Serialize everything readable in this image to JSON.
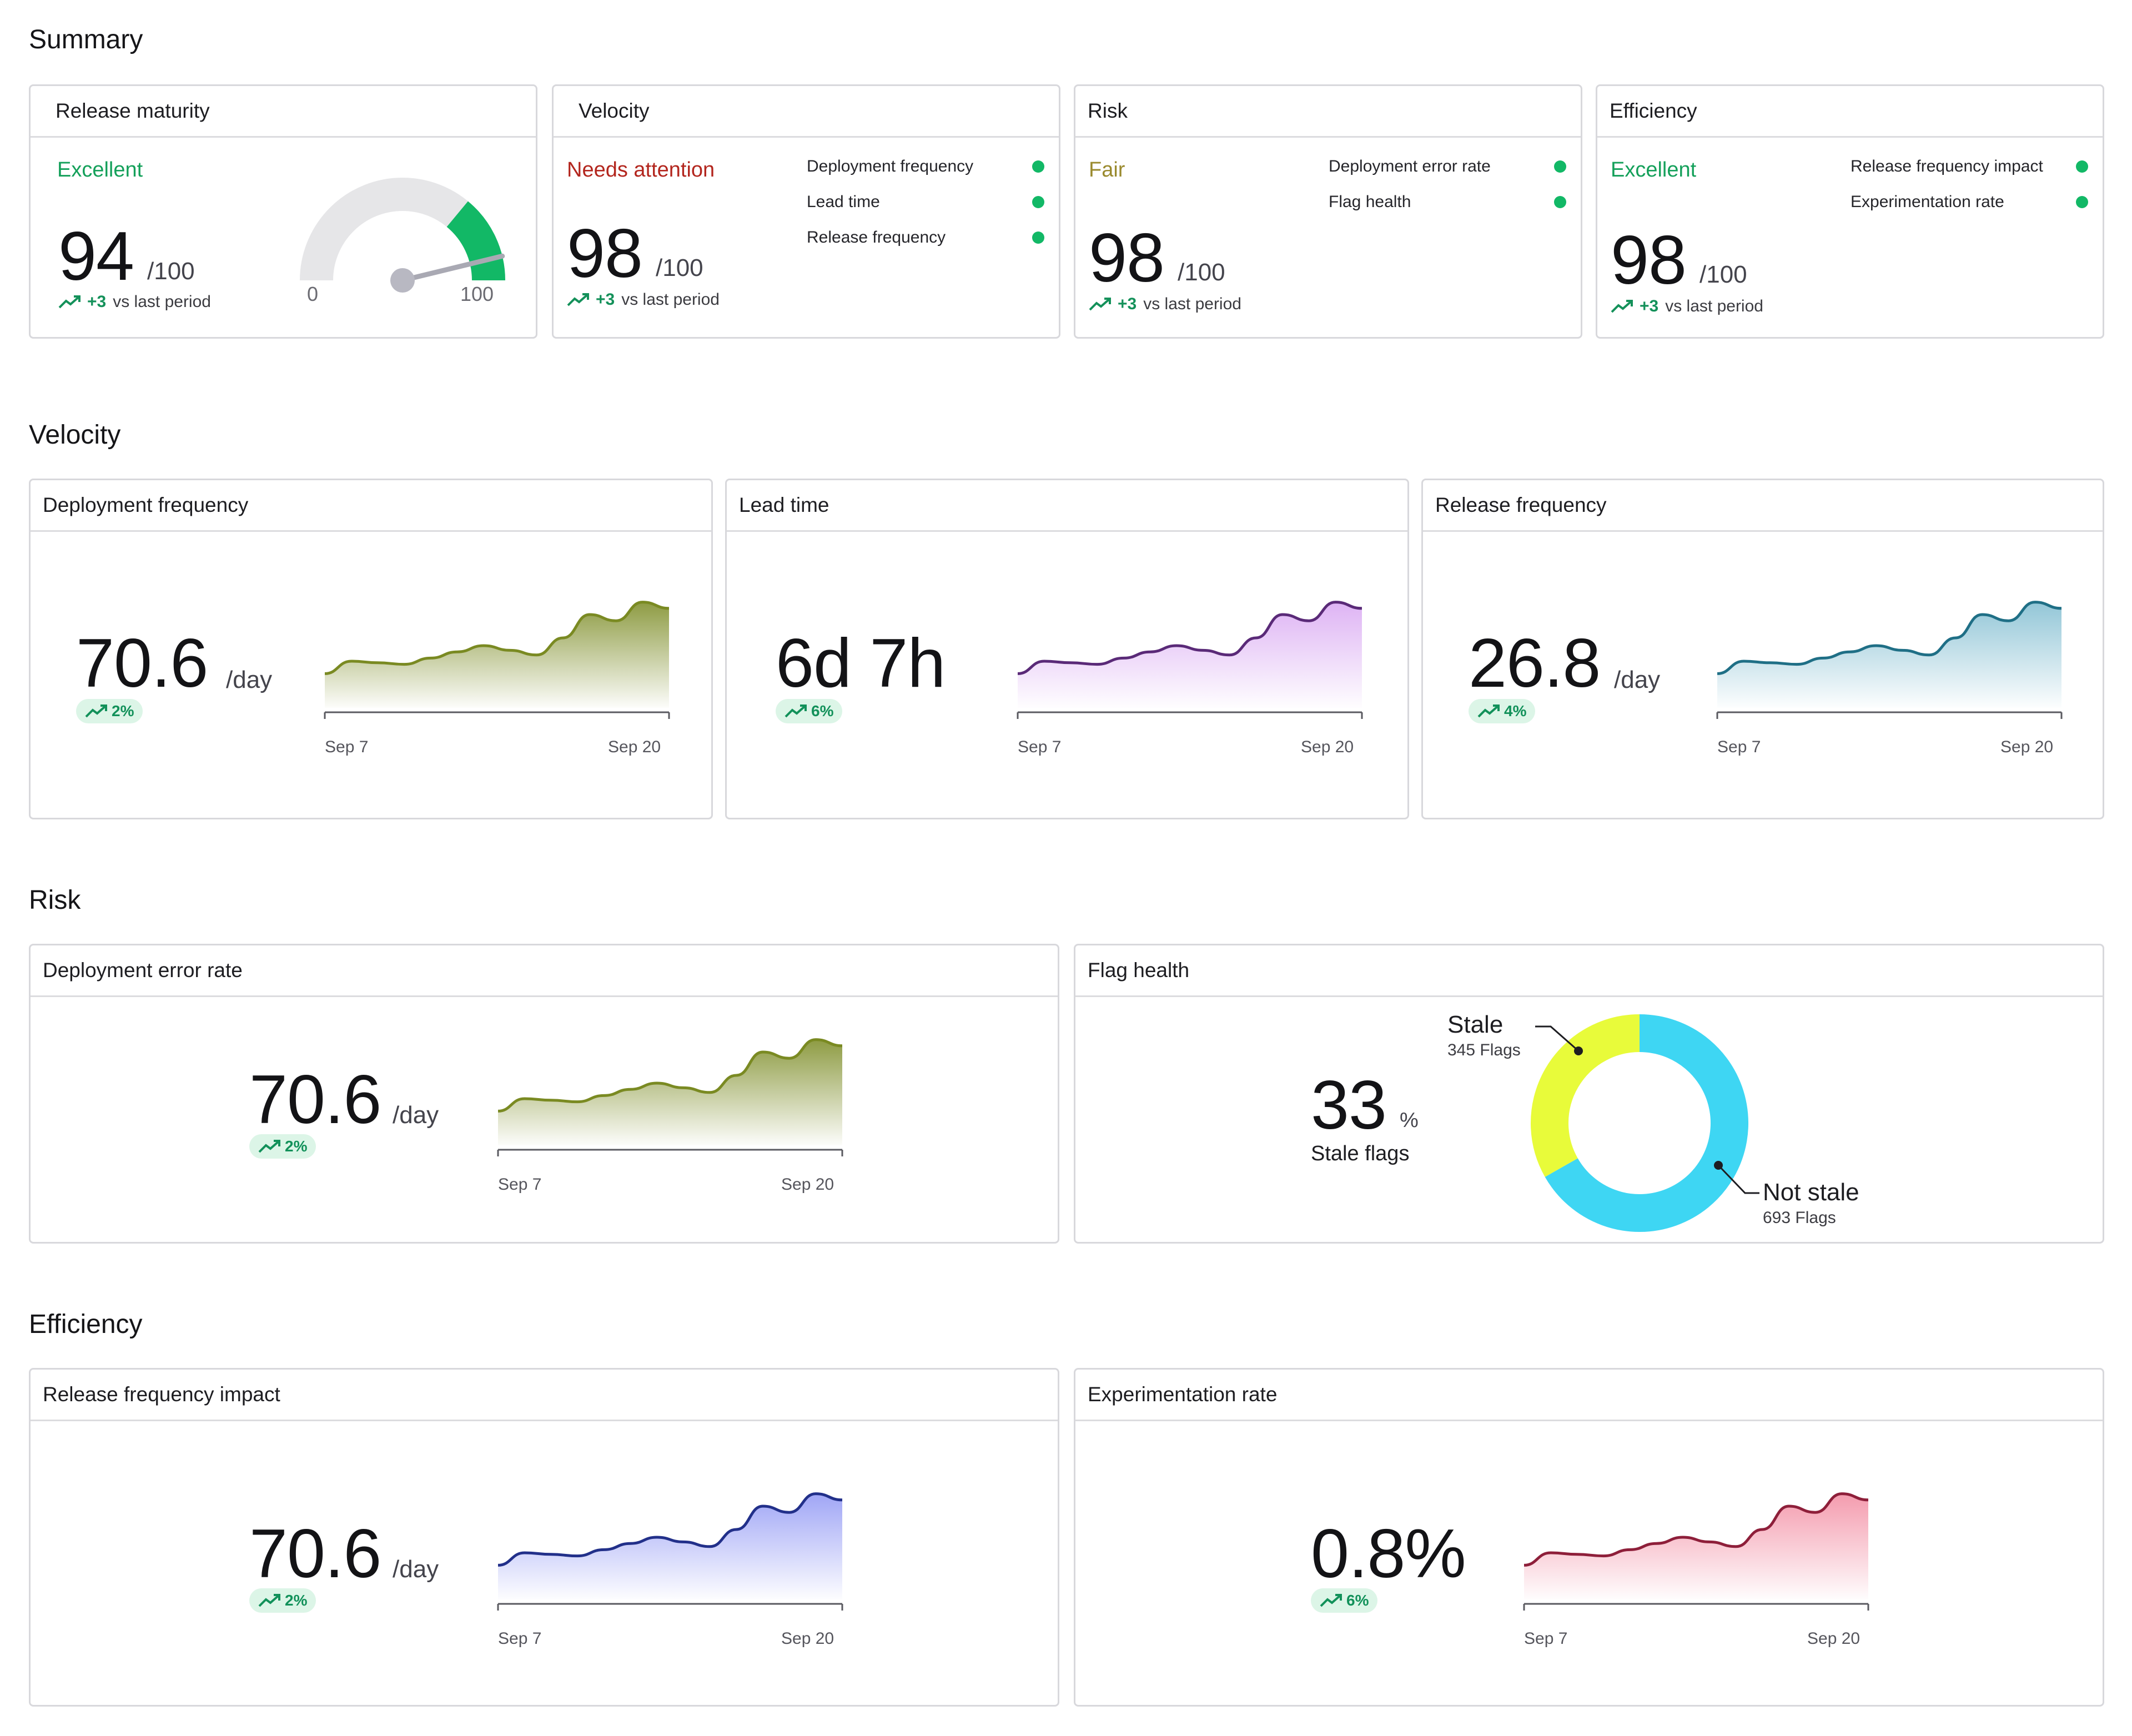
{
  "sections": {
    "summary": "Summary",
    "velocity": "Velocity",
    "risk": "Risk",
    "efficiency": "Efficiency"
  },
  "summary_cards": {
    "maturity": {
      "title": "Release maturity",
      "status": "Excellent",
      "score": "94",
      "max": "/100",
      "delta": "+3",
      "delta_label": "vs last period",
      "gauge_min": "0",
      "gauge_max": "100",
      "gauge_value": 94
    },
    "velocity": {
      "title": "Velocity",
      "status": "Needs attention",
      "score": "98",
      "max": "/100",
      "delta": "+3",
      "delta_label": "vs last period",
      "criteria": [
        "Deployment frequency",
        "Lead time",
        "Release frequency"
      ]
    },
    "risk": {
      "title": "Risk",
      "status": "Fair",
      "score": "98",
      "max": "/100",
      "delta": "+3",
      "delta_label": "vs last period",
      "criteria": [
        "Deployment error rate",
        "Flag health"
      ]
    },
    "efficiency": {
      "title": "Efficiency",
      "status": "Excellent",
      "score": "98",
      "max": "/100",
      "delta": "+3",
      "delta_label": "vs last period",
      "criteria": [
        "Release frequency impact",
        "Experimentation rate"
      ]
    }
  },
  "colors": {
    "excellent": "#14a05a",
    "needs_attention": "#b3261e",
    "fair": "#9a8a2e",
    "olive": "#7a8a22",
    "purple": "#5a2a78",
    "teal": "#1f6f86",
    "navy": "#22308a",
    "crimson": "#8e1f3a",
    "donut_stale": "#e8fb3a",
    "donut_not_stale": "#3ed6f3"
  },
  "velocity_cards": {
    "deploy": {
      "title": "Deployment frequency",
      "value": "70.6",
      "unit": "/day",
      "change": "2%"
    },
    "lead": {
      "title": "Lead time",
      "value": "6d 7h",
      "unit": "",
      "change": "6%"
    },
    "release": {
      "title": "Release frequency",
      "value": "26.8",
      "unit": "/day",
      "change": "4%"
    }
  },
  "risk_cards": {
    "error": {
      "title": "Deployment error rate",
      "value": "70.6",
      "unit": "/day",
      "change": "2%"
    },
    "flags": {
      "title": "Flag health",
      "value": "33",
      "unit": "%",
      "label": "Stale flags",
      "stale_label": "Stale",
      "stale_count": "345 Flags",
      "stale_value": 345,
      "not_stale_label": "Not stale",
      "not_stale_count": "693 Flags",
      "not_stale_value": 693
    }
  },
  "efficiency_cards": {
    "impact": {
      "title": "Release frequency impact",
      "value": "70.6",
      "unit": "/day",
      "change": "2%"
    },
    "exp": {
      "title": "Experimentation rate",
      "value": "0.8%",
      "unit": "",
      "change": "6%"
    }
  },
  "axis": {
    "start": "Sep 7",
    "end": "Sep 20"
  },
  "chart_data": {
    "type": "area",
    "x": [
      "Sep 7",
      "Sep 8",
      "Sep 9",
      "Sep 10",
      "Sep 11",
      "Sep 12",
      "Sep 13",
      "Sep 14",
      "Sep 15",
      "Sep 16",
      "Sep 17",
      "Sep 18",
      "Sep 19",
      "Sep 20"
    ],
    "values": [
      22,
      30,
      29,
      28,
      32,
      36,
      40,
      37,
      34,
      45,
      60,
      56,
      68,
      64
    ]
  }
}
